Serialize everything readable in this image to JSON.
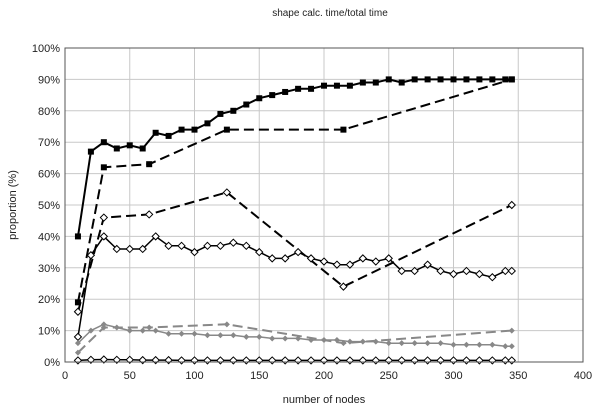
{
  "chart_data": {
    "type": "line",
    "title": "shape calc. time/total time",
    "xlabel": "number of nodes",
    "ylabel": "proportion (%)",
    "xlim": [
      0,
      400
    ],
    "ylim": [
      0,
      100
    ],
    "x_ticks": [
      "0",
      "50",
      "100",
      "150",
      "200",
      "250",
      "300",
      "350",
      "400"
    ],
    "y_ticks": [
      "0%",
      "10%",
      "20%",
      "30%",
      "40%",
      "50%",
      "60%",
      "70%",
      "80%",
      "90%",
      "100%"
    ],
    "grid": true,
    "series": [
      {
        "color": "#000000",
        "line": "solid",
        "width": 2,
        "marker": "square-filled",
        "x": [
          10,
          20,
          30,
          40,
          50,
          60,
          70,
          80,
          90,
          100,
          110,
          120,
          130,
          140,
          150,
          160,
          170,
          180,
          190,
          200,
          210,
          220,
          230,
          240,
          250,
          260,
          270,
          280,
          290,
          300,
          310,
          320,
          330,
          340,
          345
        ],
        "y": [
          40,
          67,
          70,
          68,
          69,
          68,
          73,
          72,
          74,
          74,
          76,
          79,
          80,
          82,
          84,
          85,
          86,
          87,
          87,
          88,
          88,
          88,
          89,
          89,
          90,
          89,
          90,
          90,
          90,
          90,
          90,
          90,
          90,
          90,
          90
        ]
      },
      {
        "color": "#000000",
        "line": "dashed",
        "width": 2,
        "marker": "square-filled",
        "x": [
          10,
          30,
          65,
          125,
          215,
          345
        ],
        "y": [
          19,
          62,
          63,
          74,
          74,
          90
        ]
      },
      {
        "color": "#000000",
        "line": "dashed",
        "width": 2,
        "marker": "diamond-open",
        "x": [
          10,
          30,
          65,
          125,
          215,
          345
        ],
        "y": [
          16,
          46,
          47,
          54,
          24,
          50
        ]
      },
      {
        "color": "#000000",
        "line": "solid",
        "width": 1.5,
        "marker": "diamond-open",
        "x": [
          10,
          20,
          30,
          40,
          50,
          60,
          70,
          80,
          90,
          100,
          110,
          120,
          130,
          140,
          150,
          160,
          170,
          180,
          190,
          200,
          210,
          220,
          230,
          240,
          250,
          260,
          270,
          280,
          290,
          300,
          310,
          320,
          330,
          340,
          345
        ],
        "y": [
          8,
          34,
          40,
          36,
          36,
          36,
          40,
          37,
          37,
          35,
          37,
          37,
          38,
          37,
          35,
          33,
          33,
          35,
          33,
          32,
          31,
          31,
          33,
          32,
          33,
          29,
          29,
          31,
          29,
          28,
          29,
          28,
          27,
          29,
          29
        ]
      },
      {
        "color": "#888888",
        "line": "dashed",
        "width": 2,
        "marker": "diamond-filled",
        "x": [
          10,
          30,
          65,
          125,
          215,
          345
        ],
        "y": [
          3,
          11,
          11,
          12,
          6,
          10
        ]
      },
      {
        "color": "#888888",
        "line": "solid",
        "width": 1.5,
        "marker": "diamond-filled",
        "x": [
          10,
          20,
          30,
          40,
          50,
          60,
          70,
          80,
          90,
          100,
          110,
          120,
          130,
          140,
          150,
          160,
          170,
          180,
          190,
          200,
          210,
          220,
          230,
          240,
          250,
          260,
          270,
          280,
          290,
          300,
          310,
          320,
          330,
          340,
          345
        ],
        "y": [
          6,
          10,
          12,
          11,
          10,
          10,
          10,
          9,
          9,
          9,
          8.5,
          8.5,
          8.5,
          8,
          8,
          7.5,
          7.5,
          7.5,
          7,
          7,
          7,
          6.5,
          6.5,
          6.5,
          6,
          6,
          6,
          6,
          6,
          5.5,
          5.5,
          5.5,
          5.5,
          5,
          5
        ]
      },
      {
        "color": "#000000",
        "line": "solid",
        "width": 1.5,
        "marker": "diamond-open",
        "x": [
          10,
          20,
          30,
          40,
          50,
          60,
          70,
          80,
          90,
          100,
          110,
          120,
          130,
          140,
          150,
          160,
          170,
          180,
          190,
          200,
          210,
          220,
          230,
          240,
          250,
          260,
          270,
          280,
          290,
          300,
          310,
          320,
          330,
          340,
          345
        ],
        "y": [
          0.5,
          0.7,
          0.8,
          0.7,
          0.7,
          0.6,
          0.6,
          0.6,
          0.5,
          0.5,
          0.5,
          0.5,
          0.5,
          0.5,
          0.5,
          0.5,
          0.5,
          0.5,
          0.5,
          0.5,
          0.5,
          0.5,
          0.5,
          0.5,
          0.5,
          0.5,
          0.5,
          0.5,
          0.5,
          0.5,
          0.5,
          0.5,
          0.5,
          0.5,
          0.5
        ]
      }
    ]
  }
}
